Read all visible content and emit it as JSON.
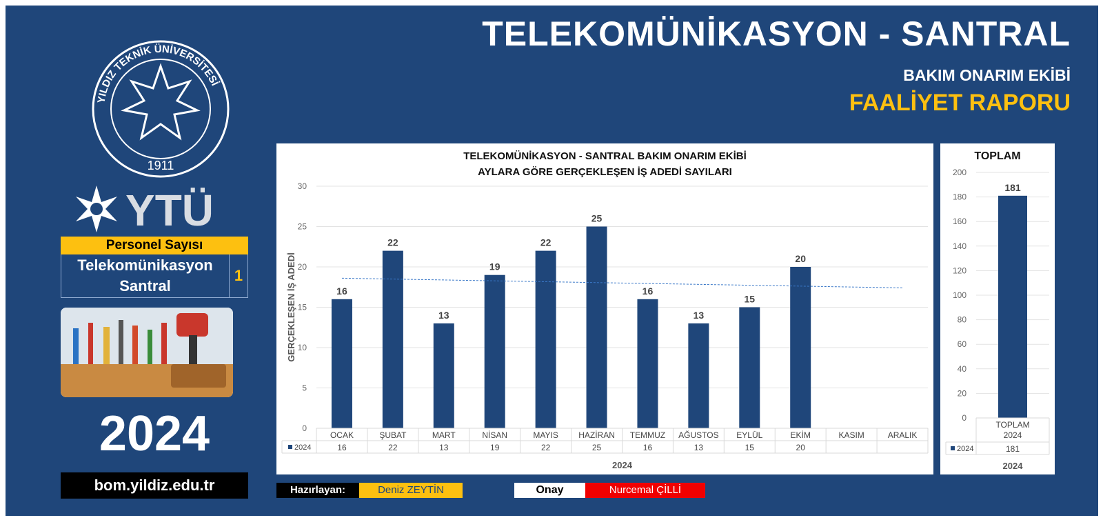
{
  "header": {
    "title": "TELEKOMÜNİKASYON - SANTRAL",
    "subtitle": "BAKIM ONARIM EKİBİ",
    "report": "FAALİYET RAPORU"
  },
  "seal": {
    "arc_text": "YILDIZ TEKNİK ÜNİVERSİTESİ",
    "year": "1911"
  },
  "logo": {
    "text": "YTÜ"
  },
  "staff": {
    "heading": "Personel Sayısı",
    "unit_line1": "Telekomünikasyon",
    "unit_line2": "Santral",
    "count": "1"
  },
  "year_display": "2024",
  "website": "bom.yildiz.edu.tr",
  "colors": {
    "background": "#1f467a",
    "accent": "#fdc010",
    "bar": "#1f467a",
    "approval": "#f00000"
  },
  "chart_data": [
    {
      "type": "bar",
      "title": "TELEKOMÜNİKASYON - SANTRAL BAKIM ONARIM EKİBİ",
      "subtitle": "AYLARA GÖRE GERÇEKLEŞEN İŞ ADEDİ SAYILARI",
      "categories": [
        "OCAK",
        "ŞUBAT",
        "MART",
        "NİSAN",
        "MAYIS",
        "HAZİRAN",
        "TEMMUZ",
        "AĞUSTOS",
        "EYLÜL",
        "EKİM",
        "KASIM",
        "ARALIK"
      ],
      "series": [
        {
          "name": "2024",
          "values": [
            16,
            22,
            13,
            19,
            22,
            25,
            16,
            13,
            15,
            20,
            null,
            null
          ]
        }
      ],
      "table_values": [
        "16",
        "22",
        "13",
        "19",
        "22",
        "25",
        "16",
        "13",
        "15",
        "20",
        "",
        ""
      ],
      "xlabel": "2024",
      "ylabel": "GERÇEKLEŞEN İŞ ADEDİ",
      "ylim": [
        0,
        30
      ],
      "yticks": [
        0,
        5,
        10,
        15,
        20,
        25,
        30
      ],
      "trendline": {
        "type": "linear",
        "start": 18.6,
        "end": 17.4
      },
      "legend": "data table"
    },
    {
      "type": "bar",
      "title": "TOPLAM",
      "categories": [
        "TOPLAM 2024"
      ],
      "category_label": [
        "TOPLAM",
        "2024"
      ],
      "series": [
        {
          "name": "2024",
          "values": [
            181
          ]
        }
      ],
      "table_values": [
        "181"
      ],
      "xlabel": "2024",
      "ylim": [
        0,
        200
      ],
      "yticks": [
        0,
        20,
        40,
        60,
        80,
        100,
        120,
        140,
        160,
        180,
        200
      ],
      "legend": "data table"
    }
  ],
  "footer": {
    "prepared_label": "Hazırlayan:",
    "prepared_name": "Deniz  ZEYTİN",
    "approval_label": "Onay",
    "approval_name": "Nurcemal ÇİLLİ"
  }
}
